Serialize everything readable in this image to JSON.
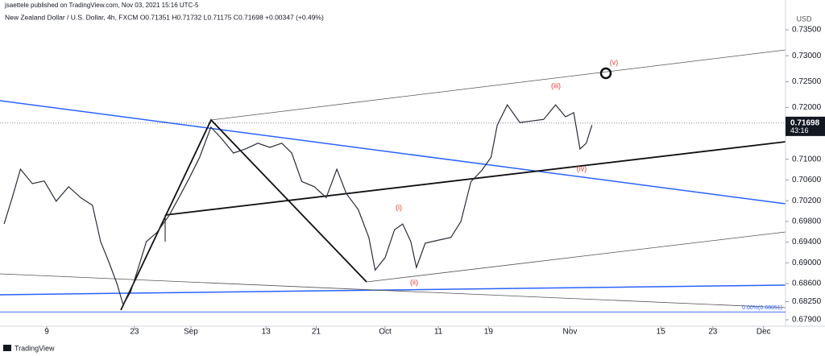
{
  "header": {
    "publisher": "jsaettele published on TradingView.com, Nov 03, 2021 15:16 UTC-5",
    "legend": "New Zealand Dollar / U.S. Dollar, 4h, FXCM  O0.71351 H0.71732 L0.71175 C0.71698 +0.00347 (+0.49%)",
    "logo": "TradingView"
  },
  "chart_data": {
    "type": "line",
    "currency": "USD",
    "color": "#2a2e39",
    "x": [
      1.2,
      2.5,
      3.8,
      5.7,
      7.6,
      9.5,
      11.5,
      13.4,
      15.3,
      16.6,
      17.9,
      19.2,
      20.2,
      21.4,
      22.7,
      23.9,
      25.6,
      27.5,
      29.1,
      30.8,
      32.4,
      34.2,
      35.9,
      37.8,
      39.7,
      41.7,
      43.6,
      45.5,
      47.1,
      48.7,
      50.7,
      52.6,
      54.3,
      55.8,
      57.7,
      59.4,
      60.4,
      62.0,
      63.5,
      64.8,
      66.1,
      67.0,
      68.4,
      70.6,
      72.5,
      74.1,
      75.7,
      77.4,
      78.9,
      79.9,
      81.5,
      83.5,
      85.4,
      87.3,
      89.2,
      90.8,
      92.1,
      93.1,
      94.1,
      95.0
    ],
    "values": [
      0.6975,
      0.7026,
      0.7081,
      0.7053,
      0.7058,
      0.7019,
      0.7047,
      0.7026,
      0.7011,
      0.6941,
      0.6902,
      0.686,
      0.6819,
      0.6844,
      0.6894,
      0.6941,
      0.6959,
      0.6991,
      0.7026,
      0.7065,
      0.7104,
      0.7162,
      0.714,
      0.7112,
      0.712,
      0.7131,
      0.7123,
      0.7131,
      0.7112,
      0.7057,
      0.7047,
      0.7026,
      0.7081,
      0.7034,
      0.7003,
      0.6949,
      0.6886,
      0.691,
      0.6964,
      0.6975,
      0.6941,
      0.6891,
      0.6938,
      0.6944,
      0.6949,
      0.698,
      0.7057,
      0.7078,
      0.7104,
      0.7166,
      0.7205,
      0.7171,
      0.7174,
      0.7177,
      0.7205,
      0.7182,
      0.719,
      0.712,
      0.7131,
      0.7166
    ],
    "xlim": [
      0.54,
      125.9
    ],
    "xticks": [
      {
        "value": 8,
        "label": "9"
      },
      {
        "value": 22,
        "label": "23"
      },
      {
        "value": 31,
        "label": "Sep"
      },
      {
        "value": 43,
        "label": "13"
      },
      {
        "value": 51,
        "label": "21"
      },
      {
        "value": 62,
        "label": "Oct"
      },
      {
        "value": 70.5,
        "label": "11"
      },
      {
        "value": 78.5,
        "label": "19"
      },
      {
        "value": 91.5,
        "label": "Nov"
      },
      {
        "value": 106,
        "label": "15"
      },
      {
        "value": 114.3,
        "label": "23"
      },
      {
        "value": 122.4,
        "label": "Dec"
      }
    ],
    "ylim": [
      0.67776,
      0.74076
    ],
    "yticks": [
      {
        "value": 0.735,
        "label": "0.73500"
      },
      {
        "value": 0.73,
        "label": "0.73000"
      },
      {
        "value": 0.725,
        "label": "0.72500"
      },
      {
        "value": 0.72,
        "label": "0.72000"
      },
      {
        "value": 0.71,
        "label": "0.71000"
      },
      {
        "value": 0.706,
        "label": "0.70600"
      },
      {
        "value": 0.702,
        "label": "0.70200"
      },
      {
        "value": 0.698,
        "label": "0.69800"
      },
      {
        "value": 0.694,
        "label": "0.69400"
      },
      {
        "value": 0.69,
        "label": "0.69000"
      },
      {
        "value": 0.686,
        "label": "0.68600"
      },
      {
        "value": 0.6825,
        "label": "0.68250"
      },
      {
        "value": 0.679,
        "label": "0.67900"
      }
    ],
    "last_price": {
      "value": 0.71698,
      "label": "0.71698"
    },
    "countdown": "43:16",
    "fib_level": {
      "value": 0.68051,
      "label": "0.00%(0.68051)"
    },
    "wave_labels": [
      "(i)",
      "(ii)",
      "(iii)",
      "(iv)",
      "(v)"
    ]
  }
}
